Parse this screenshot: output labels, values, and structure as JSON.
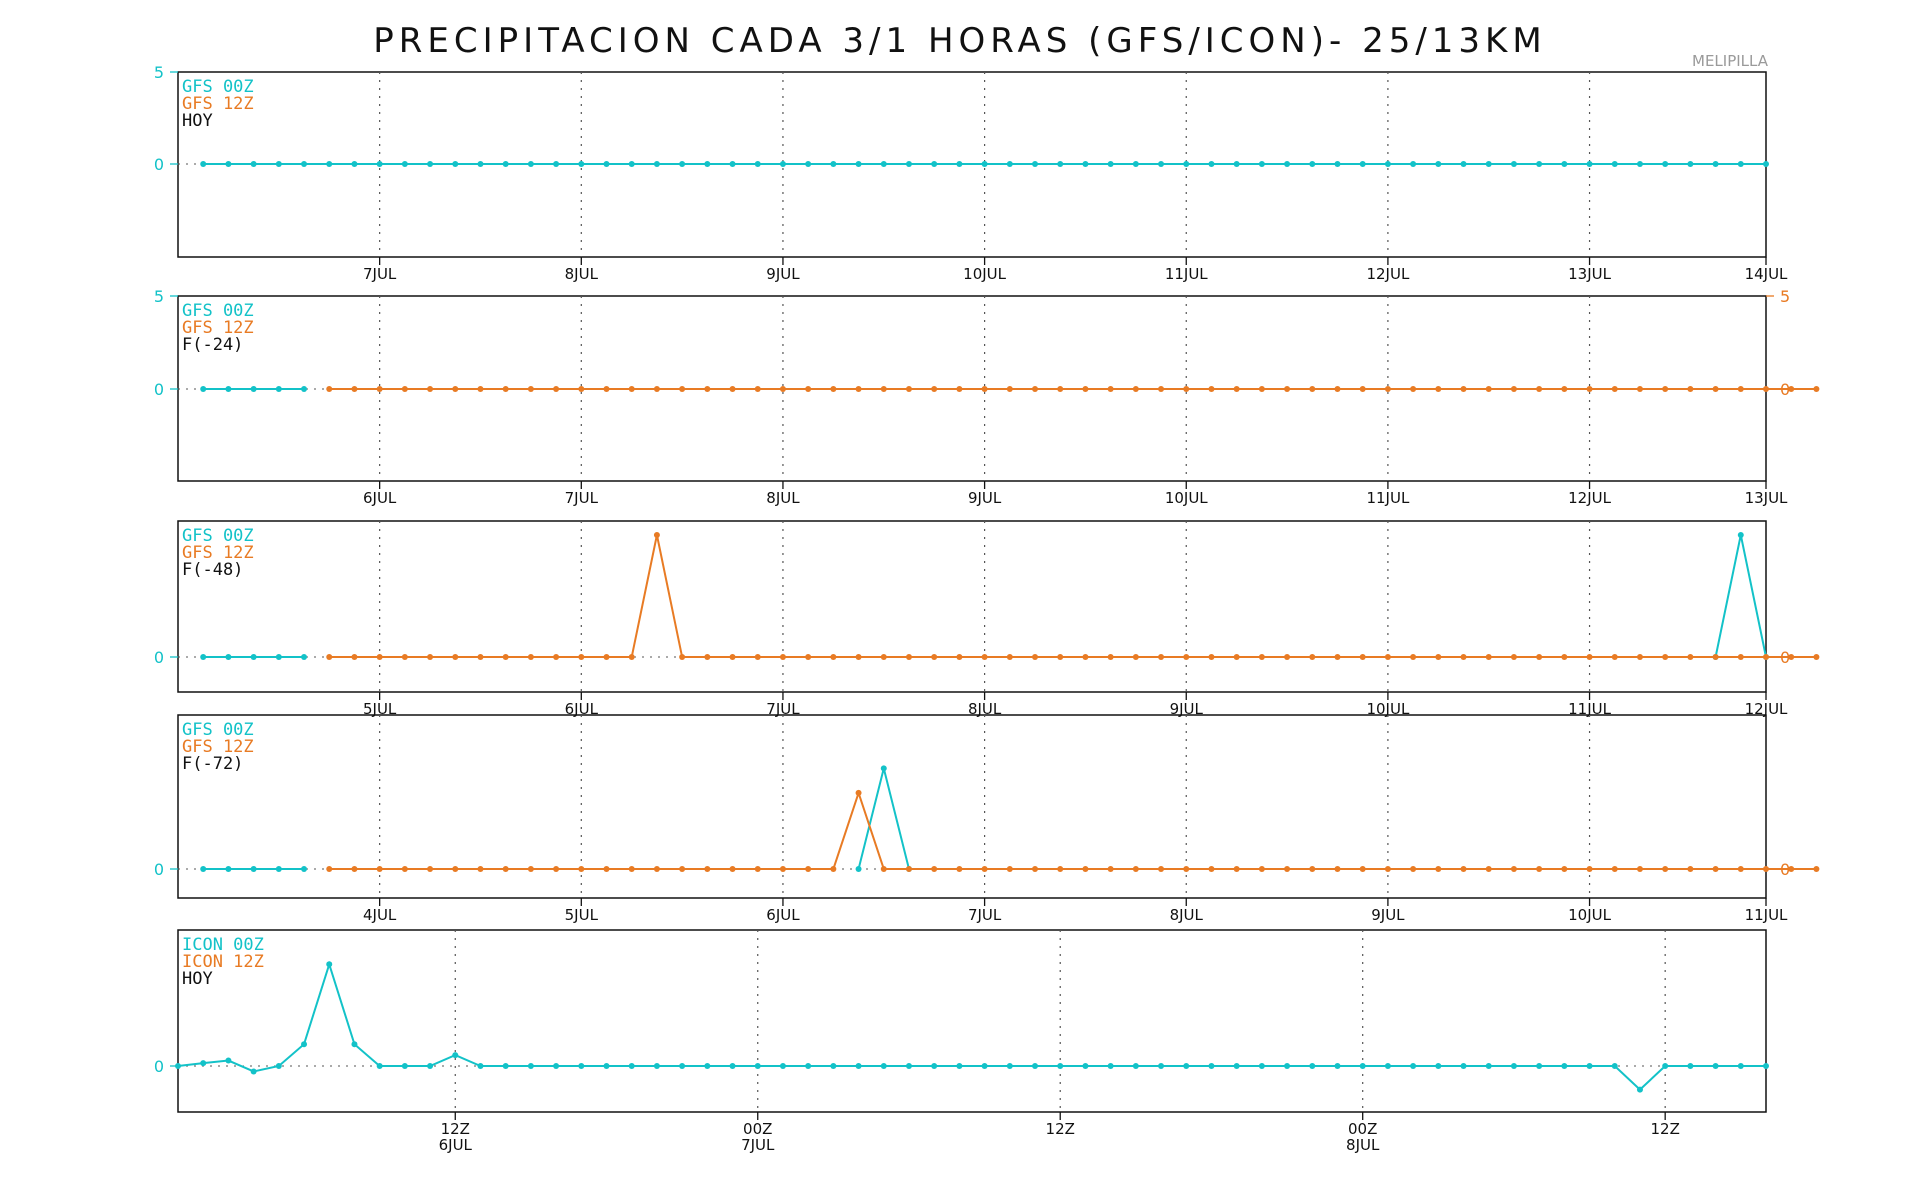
{
  "title": "PRECIPITACION CADA 3/1 HORAS (GFS/ICON)- 25/13KM",
  "station": "MELIPILLA",
  "colors": {
    "series_00z": "#13c2c8",
    "series_12z": "#e87b24",
    "axis": "#111111"
  },
  "chart_data": [
    {
      "type": "line",
      "legend": [
        "GFS 00Z",
        "GFS 12Z",
        "HOY"
      ],
      "yticks_left": [
        "5",
        "0"
      ],
      "yticks_right": [],
      "ylim": [
        -5,
        5
      ],
      "x_start": 0.125,
      "xlim": [
        0,
        7.875
      ],
      "xtick_labels": [
        "7JUL",
        "8JUL",
        "9JUL",
        "10JUL",
        "11JUL",
        "12JUL",
        "13JUL",
        "14JUL"
      ],
      "xtick_values": [
        1,
        2,
        3,
        4,
        5,
        6,
        7,
        7.875
      ],
      "gridlines": [
        1,
        2,
        3,
        4,
        5,
        6,
        7
      ],
      "step": 0.125,
      "series": [
        {
          "name": "GFS 00Z",
          "color": "cyan",
          "start_index": 0,
          "values": []
        },
        {
          "name": "GFS 12Z",
          "color": "orange",
          "start_index": 4,
          "values": []
        }
      ],
      "all_zero_count_00z": 63,
      "all_zero_count_12z": 0
    },
    {
      "type": "line",
      "legend": [
        "GFS 00Z",
        "GFS 12Z",
        "F(-24)"
      ],
      "yticks_left": [
        "5",
        "0"
      ],
      "yticks_right": [
        "5",
        "0"
      ],
      "ylim": [
        -5,
        5
      ],
      "x_start": 0.125,
      "xlim": [
        0,
        7.875
      ],
      "xtick_labels": [
        "6JUL",
        "7JUL",
        "8JUL",
        "9JUL",
        "10JUL",
        "11JUL",
        "12JUL",
        "13JUL"
      ],
      "xtick_values": [
        1,
        2,
        3,
        4,
        5,
        6,
        7,
        7.875
      ],
      "gridlines": [
        1,
        2,
        3,
        4,
        5,
        6,
        7
      ],
      "step": 0.125,
      "all_zero_count_00z": 5,
      "all_zero_count_12z": 60,
      "spikes_00z": [],
      "spikes_12z": []
    },
    {
      "type": "line",
      "legend": [
        "GFS 00Z",
        "GFS 12Z",
        "F(-48)"
      ],
      "yticks_left": [
        "0"
      ],
      "yticks_right": [
        "0"
      ],
      "ylim": [
        -0.5,
        5
      ],
      "x_start": 0.125,
      "xlim": [
        0,
        7.875
      ],
      "xtick_labels": [
        "5JUL",
        "6JUL",
        "7JUL",
        "8JUL",
        "9JUL",
        "10JUL",
        "11JUL",
        "12JUL"
      ],
      "xtick_values": [
        1,
        2,
        3,
        4,
        5,
        6,
        7,
        7.875
      ],
      "gridlines": [
        1,
        2,
        3,
        4,
        5,
        6,
        7
      ],
      "step": 0.125,
      "all_zero_count_00z": 5,
      "all_zero_count_12z": 60,
      "spikes_00z": [
        {
          "x": 7.75,
          "y": 5
        }
      ],
      "spikes_12z": [
        {
          "x": 2.375,
          "y": 5
        }
      ]
    },
    {
      "type": "line",
      "legend": [
        "GFS 00Z",
        "GFS 12Z",
        "F(-72)"
      ],
      "yticks_left": [
        "0"
      ],
      "yticks_right": [
        "0"
      ],
      "ylim": [
        -0.5,
        5
      ],
      "x_start": 0.125,
      "xlim": [
        0,
        7.875
      ],
      "xtick_labels": [
        "4JUL",
        "5JUL",
        "6JUL",
        "7JUL",
        "8JUL",
        "9JUL",
        "10JUL",
        "11JUL"
      ],
      "xtick_values": [
        1,
        2,
        3,
        4,
        5,
        6,
        7,
        7.875
      ],
      "gridlines": [
        1,
        2,
        3,
        4,
        5,
        6,
        7
      ],
      "step": 0.125,
      "all_zero_count_00z": 5,
      "all_zero_count_12z": 60,
      "spikes_00z": [
        {
          "x": 3.5,
          "y": 3.9
        }
      ],
      "spikes_12z": [
        {
          "x": 3.375,
          "y": 2.95
        }
      ]
    },
    {
      "type": "line",
      "legend": [
        "ICON 00Z",
        "ICON 12Z",
        "HOY"
      ],
      "yticks_left": [
        "0"
      ],
      "yticks_right": [],
      "ylim": [
        -1.3,
        3
      ],
      "x_start": 0,
      "xlim": [
        0,
        63
      ],
      "xtick_labels": [
        [
          "12Z",
          "6JUL"
        ],
        [
          "00Z",
          "7JUL"
        ],
        [
          "12Z",
          ""
        ],
        [
          "00Z",
          "8JUL"
        ],
        [
          "12Z",
          ""
        ]
      ],
      "xtick_values": [
        11,
        23,
        35,
        47,
        59
      ],
      "gridlines": [
        11,
        23,
        35,
        47,
        59
      ],
      "step": 1,
      "series": [
        {
          "name": "ICON 00Z",
          "color": "cyan",
          "values": [
            0,
            0.08,
            0.15,
            -0.15,
            0,
            0.6,
            2.8,
            0.6,
            0,
            0,
            0,
            0.3,
            0,
            0,
            0,
            0,
            0,
            0,
            0,
            0,
            0,
            0,
            0,
            0,
            0,
            0,
            0,
            0,
            0,
            0,
            0,
            0,
            0,
            0,
            0,
            0,
            0,
            0,
            0,
            0,
            0,
            0,
            0,
            0,
            0,
            0,
            0,
            0,
            0,
            0,
            0,
            0,
            0,
            0,
            0,
            0,
            0,
            0,
            -0.65,
            0,
            0,
            0,
            0,
            0
          ]
        }
      ]
    }
  ]
}
